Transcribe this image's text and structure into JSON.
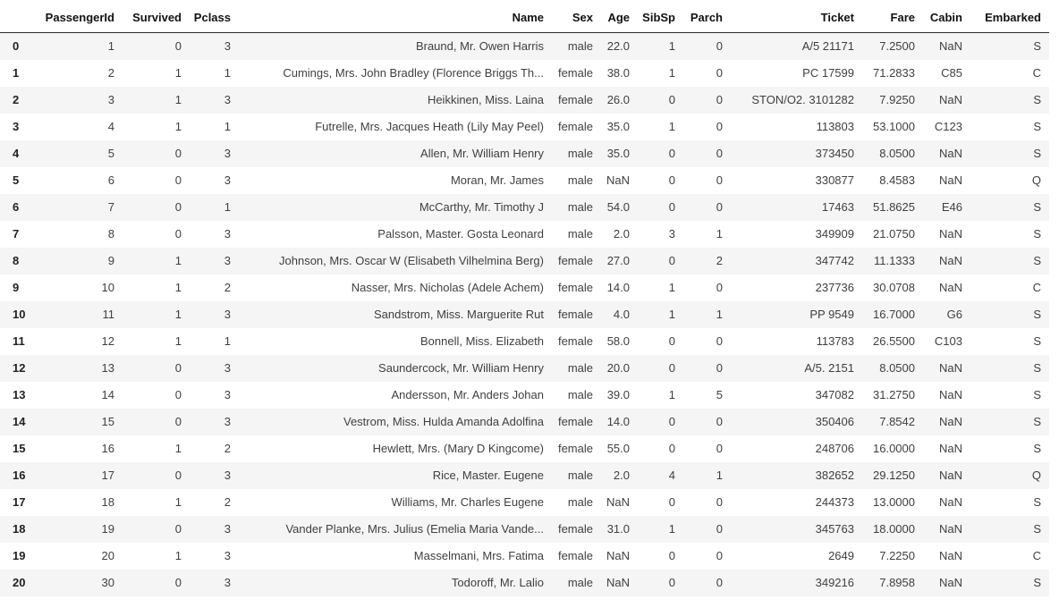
{
  "colors": {
    "stripe": "#f5f5f5",
    "header_border": "#2b2b2b",
    "header_text": "#111111",
    "body_text": "#3f3f3f",
    "background": "#ffffff"
  },
  "table": {
    "index_header": "",
    "columns": [
      "PassengerId",
      "Survived",
      "Pclass",
      "Name",
      "Sex",
      "Age",
      "SibSp",
      "Parch",
      "Ticket",
      "Fare",
      "Cabin",
      "Embarked"
    ],
    "rows": [
      {
        "index": "0",
        "cells": [
          "1",
          "0",
          "3",
          "Braund, Mr. Owen Harris",
          "male",
          "22.0",
          "1",
          "0",
          "A/5 21171",
          "7.2500",
          "NaN",
          "S"
        ]
      },
      {
        "index": "1",
        "cells": [
          "2",
          "1",
          "1",
          "Cumings, Mrs. John Bradley (Florence Briggs Th...",
          "female",
          "38.0",
          "1",
          "0",
          "PC 17599",
          "71.2833",
          "C85",
          "C"
        ]
      },
      {
        "index": "2",
        "cells": [
          "3",
          "1",
          "3",
          "Heikkinen, Miss. Laina",
          "female",
          "26.0",
          "0",
          "0",
          "STON/O2. 3101282",
          "7.9250",
          "NaN",
          "S"
        ]
      },
      {
        "index": "3",
        "cells": [
          "4",
          "1",
          "1",
          "Futrelle, Mrs. Jacques Heath (Lily May Peel)",
          "female",
          "35.0",
          "1",
          "0",
          "113803",
          "53.1000",
          "C123",
          "S"
        ]
      },
      {
        "index": "4",
        "cells": [
          "5",
          "0",
          "3",
          "Allen, Mr. William Henry",
          "male",
          "35.0",
          "0",
          "0",
          "373450",
          "8.0500",
          "NaN",
          "S"
        ]
      },
      {
        "index": "5",
        "cells": [
          "6",
          "0",
          "3",
          "Moran, Mr. James",
          "male",
          "NaN",
          "0",
          "0",
          "330877",
          "8.4583",
          "NaN",
          "Q"
        ]
      },
      {
        "index": "6",
        "cells": [
          "7",
          "0",
          "1",
          "McCarthy, Mr. Timothy J",
          "male",
          "54.0",
          "0",
          "0",
          "17463",
          "51.8625",
          "E46",
          "S"
        ]
      },
      {
        "index": "7",
        "cells": [
          "8",
          "0",
          "3",
          "Palsson, Master. Gosta Leonard",
          "male",
          "2.0",
          "3",
          "1",
          "349909",
          "21.0750",
          "NaN",
          "S"
        ]
      },
      {
        "index": "8",
        "cells": [
          "9",
          "1",
          "3",
          "Johnson, Mrs. Oscar W (Elisabeth Vilhelmina Berg)",
          "female",
          "27.0",
          "0",
          "2",
          "347742",
          "11.1333",
          "NaN",
          "S"
        ]
      },
      {
        "index": "9",
        "cells": [
          "10",
          "1",
          "2",
          "Nasser, Mrs. Nicholas (Adele Achem)",
          "female",
          "14.0",
          "1",
          "0",
          "237736",
          "30.0708",
          "NaN",
          "C"
        ]
      },
      {
        "index": "10",
        "cells": [
          "11",
          "1",
          "3",
          "Sandstrom, Miss. Marguerite Rut",
          "female",
          "4.0",
          "1",
          "1",
          "PP 9549",
          "16.7000",
          "G6",
          "S"
        ]
      },
      {
        "index": "11",
        "cells": [
          "12",
          "1",
          "1",
          "Bonnell, Miss. Elizabeth",
          "female",
          "58.0",
          "0",
          "0",
          "113783",
          "26.5500",
          "C103",
          "S"
        ]
      },
      {
        "index": "12",
        "cells": [
          "13",
          "0",
          "3",
          "Saundercock, Mr. William Henry",
          "male",
          "20.0",
          "0",
          "0",
          "A/5. 2151",
          "8.0500",
          "NaN",
          "S"
        ]
      },
      {
        "index": "13",
        "cells": [
          "14",
          "0",
          "3",
          "Andersson, Mr. Anders Johan",
          "male",
          "39.0",
          "1",
          "5",
          "347082",
          "31.2750",
          "NaN",
          "S"
        ]
      },
      {
        "index": "14",
        "cells": [
          "15",
          "0",
          "3",
          "Vestrom, Miss. Hulda Amanda Adolfina",
          "female",
          "14.0",
          "0",
          "0",
          "350406",
          "7.8542",
          "NaN",
          "S"
        ]
      },
      {
        "index": "15",
        "cells": [
          "16",
          "1",
          "2",
          "Hewlett, Mrs. (Mary D Kingcome)",
          "female",
          "55.0",
          "0",
          "0",
          "248706",
          "16.0000",
          "NaN",
          "S"
        ]
      },
      {
        "index": "16",
        "cells": [
          "17",
          "0",
          "3",
          "Rice, Master. Eugene",
          "male",
          "2.0",
          "4",
          "1",
          "382652",
          "29.1250",
          "NaN",
          "Q"
        ]
      },
      {
        "index": "17",
        "cells": [
          "18",
          "1",
          "2",
          "Williams, Mr. Charles Eugene",
          "male",
          "NaN",
          "0",
          "0",
          "244373",
          "13.0000",
          "NaN",
          "S"
        ]
      },
      {
        "index": "18",
        "cells": [
          "19",
          "0",
          "3",
          "Vander Planke, Mrs. Julius (Emelia Maria Vande...",
          "female",
          "31.0",
          "1",
          "0",
          "345763",
          "18.0000",
          "NaN",
          "S"
        ]
      },
      {
        "index": "19",
        "cells": [
          "20",
          "1",
          "3",
          "Masselmani, Mrs. Fatima",
          "female",
          "NaN",
          "0",
          "0",
          "2649",
          "7.2250",
          "NaN",
          "C"
        ]
      },
      {
        "index": "20",
        "cells": [
          "30",
          "0",
          "3",
          "Todoroff, Mr. Lalio",
          "male",
          "NaN",
          "0",
          "0",
          "349216",
          "7.8958",
          "NaN",
          "S"
        ]
      }
    ]
  }
}
